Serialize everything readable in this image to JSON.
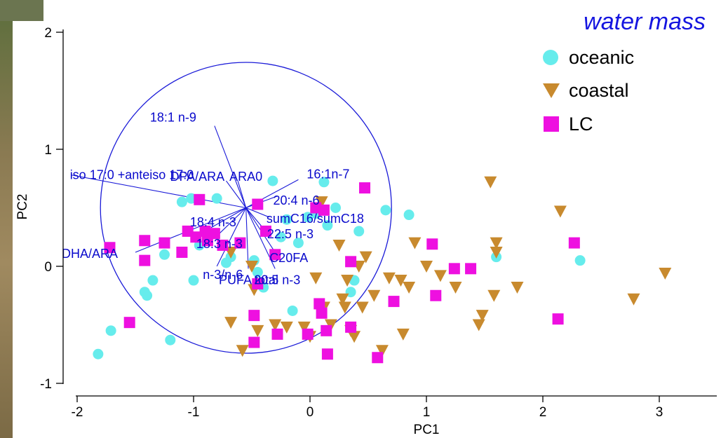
{
  "chart_data": {
    "type": "scatter",
    "title": "",
    "xlabel": "PC1",
    "ylabel": "PC2",
    "xlim": [
      -2.15,
      3.5
    ],
    "ylim": [
      -1.05,
      2.05
    ],
    "xticks": [
      "-2",
      "-1",
      "0",
      "1",
      "2",
      "3"
    ],
    "yticks": [
      "-1",
      "0",
      "1",
      "2"
    ],
    "legend": {
      "title": "water mass",
      "placement": "top-right",
      "entries": [
        {
          "label": "oceanic",
          "marker": "circle",
          "color": "#66ecec"
        },
        {
          "label": "coastal",
          "marker": "triangle-down",
          "color": "#c88a2e"
        },
        {
          "label": "LC",
          "marker": "square",
          "color": "#ee10e0"
        }
      ]
    },
    "correlation_circle": {
      "center": [
        -0.55,
        0.5
      ],
      "radius": 1.25
    },
    "vectors": [
      {
        "label": "18:1  n-9",
        "end": [
          -0.82,
          1.2
        ]
      },
      {
        "label": "iso 17:0 +anteiso 17:0",
        "end": [
          -2.05,
          0.78
        ]
      },
      {
        "label": "DPA/ARA",
        "end": [
          -0.72,
          0.73
        ]
      },
      {
        "label": "ARA0",
        "end": [
          -0.62,
          0.73
        ]
      },
      {
        "label": "16:1n-7",
        "end": [
          -0.1,
          0.74
        ]
      },
      {
        "label": "20:4 n-6",
        "end": [
          -0.28,
          0.6
        ]
      },
      {
        "label": "sumC16/sumC18",
        "end": [
          -0.35,
          0.42
        ]
      },
      {
        "label": "22:5 n-3",
        "end": [
          -0.38,
          0.3
        ]
      },
      {
        "label": "18:4 n-3",
        "end": [
          -0.85,
          0.33
        ]
      },
      {
        "label": "18:3 n-3",
        "end": [
          -0.82,
          0.24
        ]
      },
      {
        "label": "C20FA",
        "end": [
          -0.3,
          0.12
        ]
      },
      {
        "label": "DHA/ARA",
        "end": [
          -1.5,
          0.12
        ]
      },
      {
        "label": "n-3/n-6",
        "end": [
          -0.8,
          0.0
        ]
      },
      {
        "label": "20:5 n-3",
        "end": [
          -0.3,
          -0.02
        ]
      },
      {
        "label": "PUFA total",
        "end": [
          -0.53,
          -0.02
        ]
      }
    ],
    "series": [
      {
        "name": "oceanic",
        "points": [
          [
            -1.82,
            -0.75
          ],
          [
            -1.71,
            -0.55
          ],
          [
            -1.2,
            -0.63
          ],
          [
            -1.42,
            -0.22
          ],
          [
            -1.4,
            -0.25
          ],
          [
            -1.35,
            -0.12
          ],
          [
            -1.25,
            0.1
          ],
          [
            -1.1,
            0.55
          ],
          [
            -1.02,
            0.58
          ],
          [
            -1.0,
            -0.12
          ],
          [
            -0.95,
            0.18
          ],
          [
            -0.88,
            0.25
          ],
          [
            -0.8,
            0.58
          ],
          [
            -0.72,
            0.03
          ],
          [
            -0.68,
            0.08
          ],
          [
            -0.6,
            0.2
          ],
          [
            -0.48,
            0.05
          ],
          [
            -0.45,
            -0.05
          ],
          [
            -0.4,
            -0.18
          ],
          [
            -0.32,
            0.73
          ],
          [
            -0.25,
            0.25
          ],
          [
            -0.2,
            0.4
          ],
          [
            -0.15,
            -0.38
          ],
          [
            -0.1,
            0.2
          ],
          [
            -0.02,
            0.42
          ],
          [
            0.05,
            0.45
          ],
          [
            0.12,
            0.72
          ],
          [
            0.15,
            0.35
          ],
          [
            0.22,
            0.5
          ],
          [
            0.35,
            -0.22
          ],
          [
            0.38,
            -0.12
          ],
          [
            0.42,
            0.3
          ],
          [
            0.65,
            0.48
          ],
          [
            0.85,
            0.44
          ],
          [
            1.6,
            0.08
          ],
          [
            2.32,
            0.05
          ]
        ]
      },
      {
        "name": "coastal",
        "points": [
          [
            -0.68,
            0.12
          ],
          [
            -0.68,
            -0.48
          ],
          [
            -0.58,
            -0.72
          ],
          [
            -0.48,
            -0.2
          ],
          [
            -0.45,
            -0.55
          ],
          [
            -0.5,
            0.0
          ],
          [
            -0.3,
            -0.5
          ],
          [
            -0.2,
            -0.52
          ],
          [
            -0.05,
            -0.52
          ],
          [
            0.0,
            -0.6
          ],
          [
            0.05,
            -0.1
          ],
          [
            0.1,
            0.55
          ],
          [
            0.12,
            -0.35
          ],
          [
            0.18,
            -0.5
          ],
          [
            0.25,
            0.18
          ],
          [
            0.28,
            -0.28
          ],
          [
            0.3,
            -0.35
          ],
          [
            0.32,
            -0.12
          ],
          [
            0.35,
            -0.55
          ],
          [
            0.38,
            -0.6
          ],
          [
            0.42,
            0.0
          ],
          [
            0.45,
            -0.35
          ],
          [
            0.48,
            0.08
          ],
          [
            0.55,
            -0.25
          ],
          [
            0.62,
            -0.72
          ],
          [
            0.68,
            -0.1
          ],
          [
            0.78,
            -0.12
          ],
          [
            0.8,
            -0.58
          ],
          [
            0.85,
            -0.18
          ],
          [
            0.9,
            0.2
          ],
          [
            1.0,
            0.0
          ],
          [
            1.12,
            -0.08
          ],
          [
            1.25,
            -0.18
          ],
          [
            1.45,
            -0.5
          ],
          [
            1.48,
            -0.42
          ],
          [
            1.55,
            0.72
          ],
          [
            1.58,
            -0.25
          ],
          [
            1.6,
            0.2
          ],
          [
            1.6,
            0.12
          ],
          [
            1.78,
            -0.18
          ],
          [
            2.15,
            0.47
          ],
          [
            2.78,
            -0.28
          ],
          [
            3.05,
            -0.06
          ]
        ]
      },
      {
        "name": "LC",
        "points": [
          [
            -1.72,
            0.16
          ],
          [
            -1.55,
            -0.48
          ],
          [
            -1.42,
            0.22
          ],
          [
            -1.42,
            0.05
          ],
          [
            -1.25,
            0.2
          ],
          [
            -1.1,
            0.12
          ],
          [
            -1.05,
            0.3
          ],
          [
            -0.98,
            0.25
          ],
          [
            -0.95,
            0.57
          ],
          [
            -0.9,
            0.3
          ],
          [
            -0.88,
            0.22
          ],
          [
            -0.82,
            0.28
          ],
          [
            -0.75,
            0.18
          ],
          [
            -0.6,
            0.2
          ],
          [
            -0.45,
            0.53
          ],
          [
            -0.45,
            -0.15
          ],
          [
            -0.48,
            -0.42
          ],
          [
            -0.48,
            -0.65
          ],
          [
            -0.38,
            0.3
          ],
          [
            -0.3,
            0.1
          ],
          [
            -0.28,
            -0.58
          ],
          [
            -0.02,
            -0.58
          ],
          [
            0.05,
            0.5
          ],
          [
            0.08,
            -0.32
          ],
          [
            0.1,
            -0.4
          ],
          [
            0.12,
            0.48
          ],
          [
            0.14,
            -0.55
          ],
          [
            0.15,
            -0.75
          ],
          [
            0.35,
            0.04
          ],
          [
            0.35,
            -0.52
          ],
          [
            0.47,
            0.67
          ],
          [
            0.58,
            -0.78
          ],
          [
            0.72,
            -0.3
          ],
          [
            1.05,
            0.19
          ],
          [
            1.08,
            -0.25
          ],
          [
            1.24,
            -0.02
          ],
          [
            1.38,
            -0.02
          ],
          [
            2.13,
            -0.45
          ],
          [
            2.27,
            0.2
          ]
        ]
      }
    ]
  }
}
